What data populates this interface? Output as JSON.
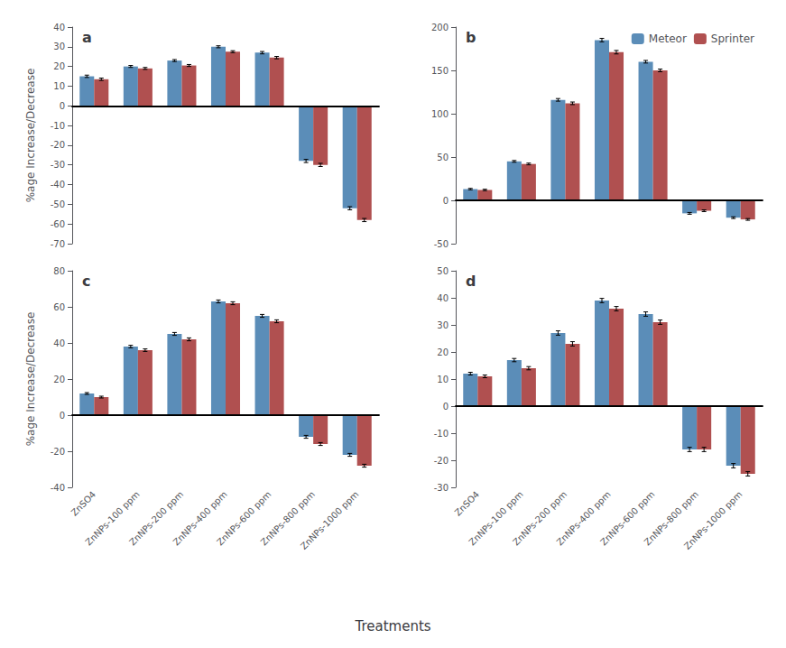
{
  "chart_data": [
    {
      "type": "bar",
      "title": "a",
      "ylabel": "%age Increase/Decrease",
      "categories": [
        "ZnSO4",
        "ZnNPs-100 ppm",
        "ZnNPs-200 ppm",
        "ZnNPs-400 ppm",
        "ZnNPs-600 ppm",
        "ZnNPs-800 ppm",
        "ZnNPs-1000 ppm"
      ],
      "series": [
        {
          "name": "Meteor",
          "color": "#5b8db8",
          "values": [
            15,
            20,
            23,
            30,
            27,
            -28,
            -52
          ],
          "errors": [
            0.6,
            0.5,
            0.5,
            0.5,
            0.6,
            0.8,
            0.8
          ]
        },
        {
          "name": "Sprinter",
          "color": "#b05050",
          "values": [
            13.5,
            19,
            20.5,
            27.5,
            24.5,
            -30,
            -58
          ],
          "errors": [
            0.6,
            0.5,
            0.5,
            0.5,
            0.6,
            0.8,
            0.8
          ]
        }
      ],
      "ylim": [
        -70,
        40
      ],
      "yticks": [
        -70,
        -60,
        -50,
        -40,
        -30,
        -20,
        -10,
        0,
        10,
        20,
        30,
        40
      ],
      "grid": false,
      "tick_labels": "y"
    },
    {
      "type": "bar",
      "title": "b",
      "categories": [
        "ZnSO4",
        "ZnNPs-100 ppm",
        "ZnNPs-200 ppm",
        "ZnNPs-400 ppm",
        "ZnNPs-600 ppm",
        "ZnNPs-800 ppm",
        "ZnNPs-1000 ppm"
      ],
      "series": [
        {
          "name": "Meteor",
          "color": "#5b8db8",
          "values": [
            13,
            45,
            116,
            185,
            160,
            -15,
            -20
          ],
          "errors": [
            0.8,
            1.0,
            1.5,
            2.0,
            1.5,
            1.0,
            1.0
          ]
        },
        {
          "name": "Sprinter",
          "color": "#b05050",
          "values": [
            12,
            42,
            112,
            171,
            150,
            -12,
            -22
          ],
          "errors": [
            0.8,
            1.0,
            1.5,
            2.0,
            1.5,
            1.0,
            1.0
          ]
        }
      ],
      "ylim": [
        -50,
        200
      ],
      "yticks": [
        -50,
        0,
        50,
        100,
        150,
        200
      ],
      "grid": false,
      "tick_labels": "y",
      "legend": "upper right"
    },
    {
      "type": "bar",
      "title": "c",
      "ylabel": "%age Increase/Decrease",
      "xlabel": "Treatments",
      "categories": [
        "ZnSO4",
        "ZnNPs-100 ppm",
        "ZnNPs-200 ppm",
        "ZnNPs-400 ppm",
        "ZnNPs-600 ppm",
        "ZnNPs-800 ppm",
        "ZnNPs-1000 ppm"
      ],
      "series": [
        {
          "name": "Meteor",
          "color": "#5b8db8",
          "values": [
            12,
            38,
            45,
            63,
            55,
            -12,
            -22
          ],
          "errors": [
            0.5,
            0.7,
            0.8,
            0.8,
            0.8,
            0.8,
            0.8
          ]
        },
        {
          "name": "Sprinter",
          "color": "#b05050",
          "values": [
            10,
            36,
            42,
            62,
            52,
            -16,
            -28
          ],
          "errors": [
            0.5,
            0.7,
            0.8,
            0.8,
            0.8,
            0.8,
            0.8
          ]
        }
      ],
      "ylim": [
        -40,
        80
      ],
      "yticks": [
        -40,
        -20,
        0,
        20,
        40,
        60,
        80
      ],
      "grid": false
    },
    {
      "type": "bar",
      "title": "d",
      "categories": [
        "ZnSO4",
        "ZnNPs-100 ppm",
        "ZnNPs-200 ppm",
        "ZnNPs-400 ppm",
        "ZnNPs-600 ppm",
        "ZnNPs-800 ppm",
        "ZnNPs-1000 ppm"
      ],
      "series": [
        {
          "name": "Meteor",
          "color": "#5b8db8",
          "values": [
            12,
            17,
            27,
            39,
            34,
            -16,
            -22
          ],
          "errors": [
            0.5,
            0.6,
            0.8,
            0.8,
            0.8,
            0.8,
            0.8
          ]
        },
        {
          "name": "Sprinter",
          "color": "#b05050",
          "values": [
            11,
            14,
            23,
            36,
            31,
            -16,
            -25
          ],
          "errors": [
            0.5,
            0.6,
            0.8,
            0.8,
            0.8,
            0.8,
            0.8
          ]
        }
      ],
      "ylim": [
        -30,
        50
      ],
      "yticks": [
        -30,
        -20,
        -10,
        0,
        10,
        20,
        30,
        40,
        50
      ],
      "grid": false
    }
  ]
}
